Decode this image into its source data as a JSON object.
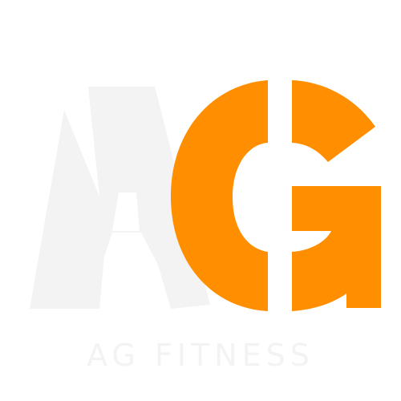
{
  "logo": {
    "monogram": "AG",
    "colors": {
      "letter_a": "#f3f3f3",
      "letter_g": "#ff8f00",
      "wordmark": "#f3f3f3",
      "background": "#ffffff"
    }
  },
  "brand": {
    "name": "AG FITNESS"
  }
}
